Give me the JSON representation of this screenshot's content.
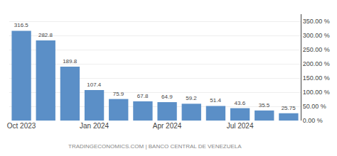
{
  "chart_data": {
    "type": "bar",
    "categories": [
      "Oct 2023",
      null,
      null,
      "Jan 2024",
      null,
      null,
      "Apr 2024",
      null,
      null,
      "Jul 2024",
      null,
      null
    ],
    "values": [
      316.5,
      282.8,
      189.8,
      107.4,
      75.9,
      67.8,
      64.9,
      59.2,
      51.4,
      43.6,
      35.5,
      25.75
    ],
    "color": "#5b8fc7",
    "ylim": [
      0,
      375
    ],
    "yticks": [
      {
        "value": 0,
        "label": "0.00 %"
      },
      {
        "value": 50,
        "label": "50.00 %"
      },
      {
        "value": 100,
        "label": "100.00 %"
      },
      {
        "value": 150,
        "label": "150.00 %"
      },
      {
        "value": 200,
        "label": "200.00 %"
      },
      {
        "value": 250,
        "label": "250.00 %"
      },
      {
        "value": 300,
        "label": "300.00 %"
      },
      {
        "value": 350,
        "label": "350.00 %"
      }
    ],
    "grid": true,
    "data_labels": true,
    "annotations": [
      "TRADINGECONOMICS.COM | BANCO CENTRAL DE VENEZUELA"
    ]
  }
}
